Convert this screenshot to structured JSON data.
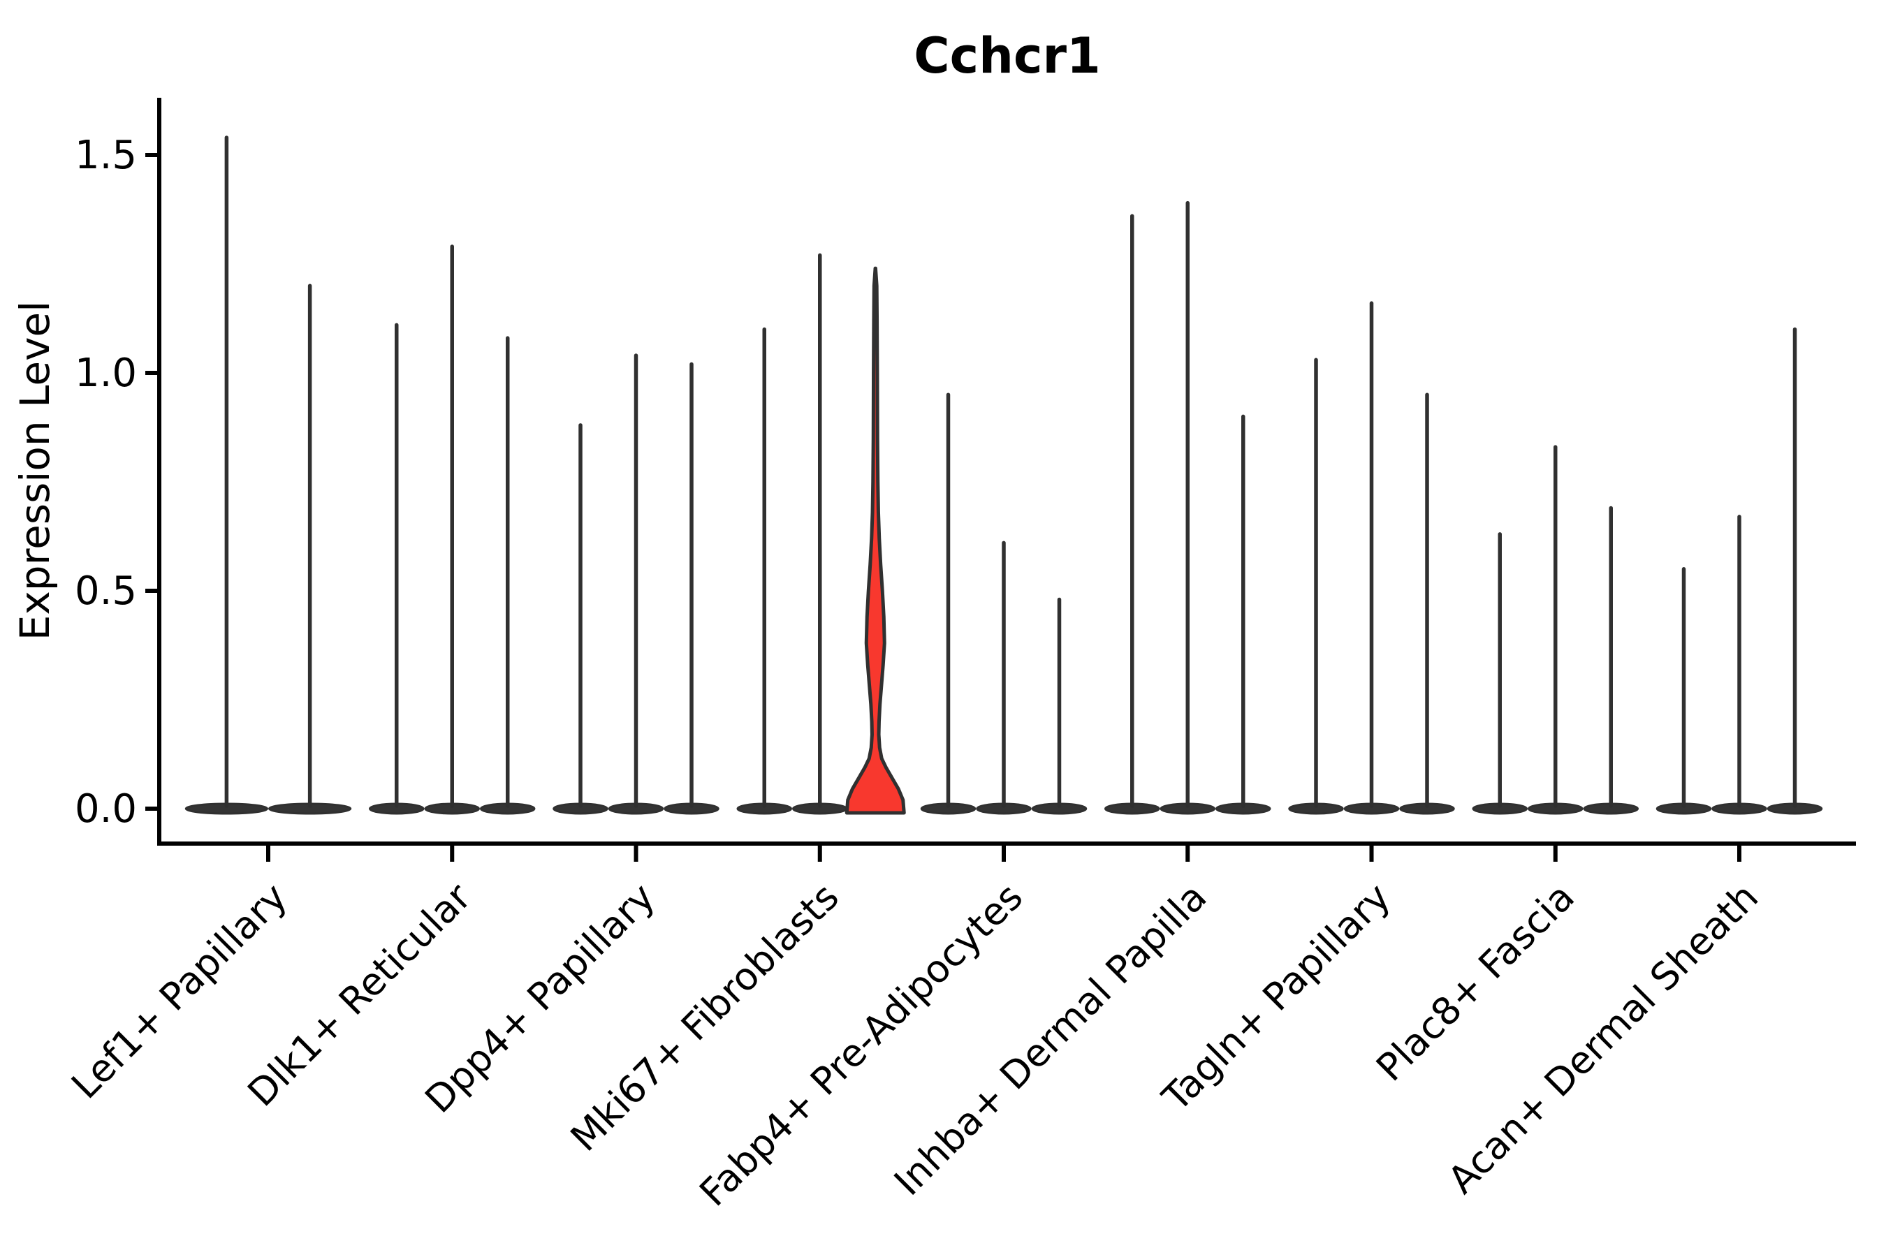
{
  "chart_data": {
    "type": "violin",
    "title": "Cchcr1",
    "xlabel": "",
    "ylabel": "Expression Level",
    "ylim": [
      -0.08,
      1.63
    ],
    "yticks": [
      0.0,
      0.5,
      1.0,
      1.5
    ],
    "ytick_labels": [
      "0.0",
      "0.5",
      "1.0",
      "1.5"
    ],
    "grid": false,
    "legend": null,
    "categories": [
      "Lef1+ Papillary",
      "Dlk1+ Reticular",
      "Dpp4+ Papillary",
      "Mki67+ Fibroblasts",
      "Fabp4+ Pre-Adipocytes",
      "Inhba+ Dermal Papilla",
      "Tagln+ Papillary",
      "Plac8+ Fascia",
      "Acan+ Dermal Sheath"
    ],
    "series": [
      {
        "category": "Lef1+ Papillary",
        "violin_max_values": [
          1.54,
          1.2
        ],
        "highlighted_violin": null
      },
      {
        "category": "Dlk1+ Reticular",
        "violin_max_values": [
          1.11,
          1.29,
          1.08
        ],
        "highlighted_violin": null
      },
      {
        "category": "Dpp4+ Papillary",
        "violin_max_values": [
          0.88,
          1.04,
          1.02
        ],
        "highlighted_violin": null
      },
      {
        "category": "Mki67+ Fibroblasts",
        "violin_max_values": [
          1.1,
          1.27,
          1.24
        ],
        "highlighted_violin": 2
      },
      {
        "category": "Fabp4+ Pre-Adipocytes",
        "violin_max_values": [
          0.95,
          0.61,
          0.48
        ],
        "highlighted_violin": null
      },
      {
        "category": "Inhba+ Dermal Papilla",
        "violin_max_values": [
          1.36,
          1.39,
          0.9
        ],
        "highlighted_violin": null
      },
      {
        "category": "Tagln+ Papillary",
        "violin_max_values": [
          1.03,
          1.16,
          0.95
        ],
        "highlighted_violin": null
      },
      {
        "category": "Plac8+ Fascia",
        "violin_max_values": [
          0.63,
          0.83,
          0.69
        ],
        "highlighted_violin": null
      },
      {
        "category": "Acan+ Dermal Sheath",
        "violin_max_values": [
          0.55,
          0.67,
          1.1
        ],
        "highlighted_violin": null
      }
    ],
    "highlighted_violin_profile_value_halfwidth": [
      [
        0.0,
        41.0
      ],
      [
        0.02,
        39.5
      ],
      [
        0.045,
        33.0
      ],
      [
        0.07,
        24.0
      ],
      [
        0.095,
        15.0
      ],
      [
        0.115,
        9.0
      ],
      [
        0.14,
        6.0
      ],
      [
        0.17,
        4.8
      ],
      [
        0.2,
        5.2
      ],
      [
        0.24,
        6.5
      ],
      [
        0.28,
        8.5
      ],
      [
        0.33,
        11.0
      ],
      [
        0.38,
        13.0
      ],
      [
        0.44,
        12.0
      ],
      [
        0.5,
        10.0
      ],
      [
        0.56,
        7.5
      ],
      [
        0.62,
        5.5
      ],
      [
        0.68,
        4.2
      ],
      [
        0.75,
        3.5
      ],
      [
        0.85,
        3.0
      ],
      [
        1.0,
        2.7
      ],
      [
        1.12,
        2.3
      ],
      [
        1.2,
        1.9
      ],
      [
        1.24,
        0.2
      ]
    ],
    "colors": {
      "background": "#FFFFFF",
      "violin_edge": "#303030",
      "violin_base_fill": "#343434",
      "highlight_fill": "#F8382E",
      "axis": "#000000",
      "text": "#000000"
    }
  }
}
